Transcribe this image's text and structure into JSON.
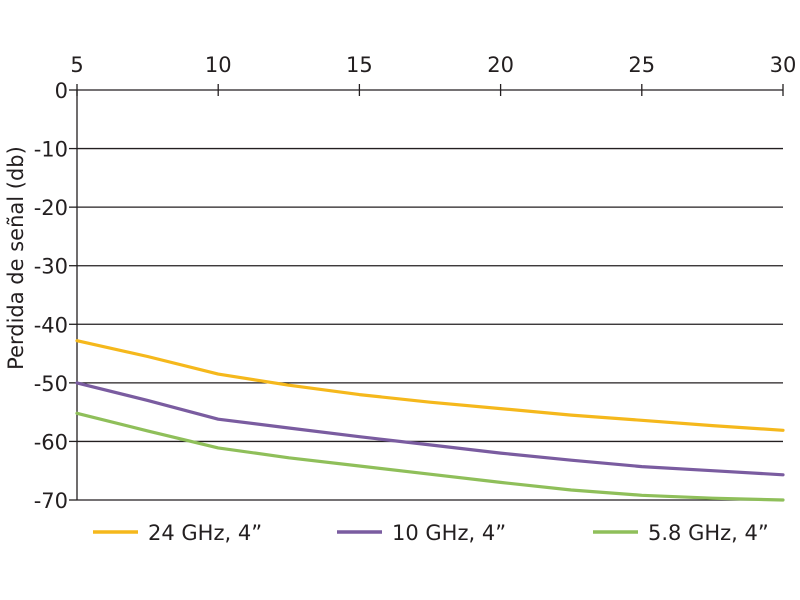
{
  "chart_data": {
    "type": "line",
    "title": "",
    "xlabel": "",
    "ylabel": "Perdida de señal (db)",
    "xlim": [
      5,
      30
    ],
    "ylim": [
      -70,
      0
    ],
    "x_ticks": [
      "5",
      "10",
      "15",
      "20",
      "25",
      "30"
    ],
    "y_ticks": [
      "0",
      "-10",
      "-20",
      "-30",
      "-40",
      "-50",
      "-60",
      "-70"
    ],
    "x_axis_position": "top",
    "grid": "horizontal",
    "legend_position": "bottom",
    "series": [
      {
        "name": "24 GHz, 4”",
        "color": "#f5b81c",
        "points": [
          [
            5,
            -42.8
          ],
          [
            7.5,
            -45.5
          ],
          [
            10,
            -48.5
          ],
          [
            12.5,
            -50.4
          ],
          [
            15,
            -52
          ],
          [
            17.5,
            -53.3
          ],
          [
            20,
            -54.4
          ],
          [
            22.5,
            -55.5
          ],
          [
            25,
            -56.4
          ],
          [
            27.5,
            -57.3
          ],
          [
            30,
            -58.1
          ]
        ]
      },
      {
        "name": "10 GHz, 4”",
        "color": "#7a5ca0",
        "points": [
          [
            5,
            -50
          ],
          [
            7.5,
            -53
          ],
          [
            10,
            -56.2
          ],
          [
            12.5,
            -57.7
          ],
          [
            15,
            -59.2
          ],
          [
            17.5,
            -60.6
          ],
          [
            20,
            -62
          ],
          [
            22.5,
            -63.2
          ],
          [
            25,
            -64.3
          ],
          [
            27.5,
            -65
          ],
          [
            30,
            -65.7
          ]
        ]
      },
      {
        "name": "5.8 GHz, 4”",
        "color": "#8fbf5a",
        "points": [
          [
            5,
            -55.2
          ],
          [
            7.5,
            -58.2
          ],
          [
            10,
            -61.1
          ],
          [
            12.5,
            -62.8
          ],
          [
            15,
            -64.2
          ],
          [
            17.5,
            -65.6
          ],
          [
            20,
            -67
          ],
          [
            22.5,
            -68.3
          ],
          [
            25,
            -69.2
          ],
          [
            27.5,
            -69.7
          ],
          [
            30,
            -70
          ]
        ]
      }
    ]
  }
}
